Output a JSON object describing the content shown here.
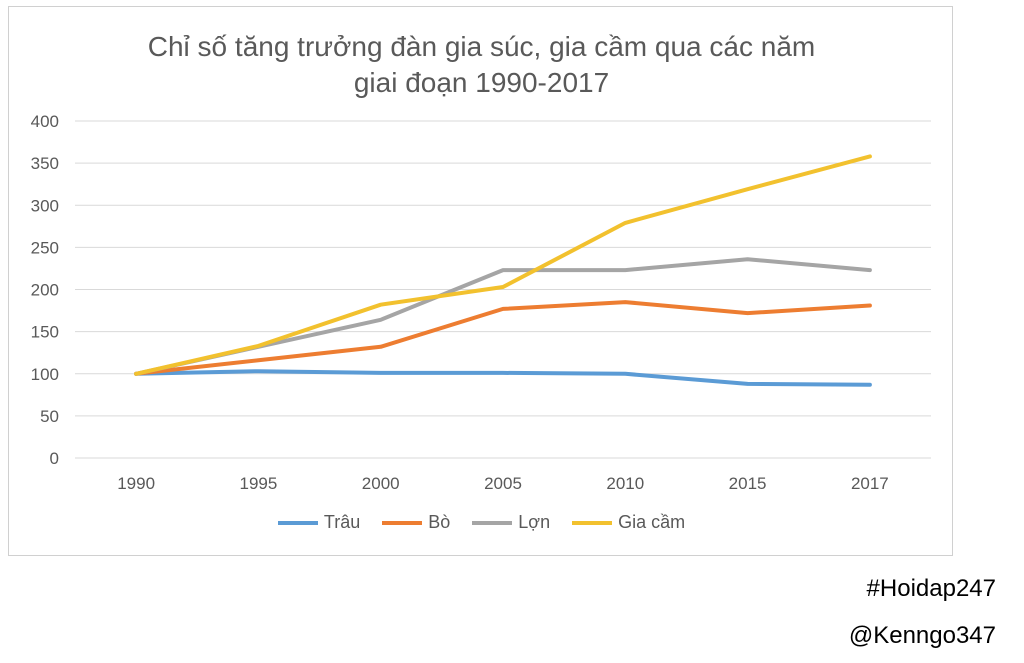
{
  "chart_data": {
    "type": "line",
    "title_lines": [
      "Chỉ số tăng trưởng đàn gia súc, gia cầm qua các năm",
      "giai đoạn 1990-2017"
    ],
    "categories": [
      "1990",
      "1995",
      "2000",
      "2005",
      "2010",
      "2015",
      "2017"
    ],
    "ylim": [
      0,
      400
    ],
    "yticks": [
      0,
      50,
      100,
      150,
      200,
      250,
      300,
      350,
      400
    ],
    "grid": true,
    "legend_position": "bottom",
    "series": [
      {
        "name": "Trâu",
        "color": "#5b9bd5",
        "values": [
          100,
          103,
          101,
          101,
          100,
          88,
          87
        ]
      },
      {
        "name": "Bò",
        "color": "#ed7d31",
        "values": [
          100,
          116,
          132,
          177,
          185,
          172,
          181
        ]
      },
      {
        "name": "Lợn",
        "color": "#a5a5a5",
        "values": [
          100,
          132,
          164,
          223,
          223,
          236,
          223
        ]
      },
      {
        "name": "Gia cầm",
        "color": "#f2c12e",
        "values": [
          100,
          133,
          182,
          203,
          279,
          319,
          358
        ]
      }
    ]
  },
  "watermarks": [
    "#Hoidap247",
    "@Kenngo347"
  ]
}
